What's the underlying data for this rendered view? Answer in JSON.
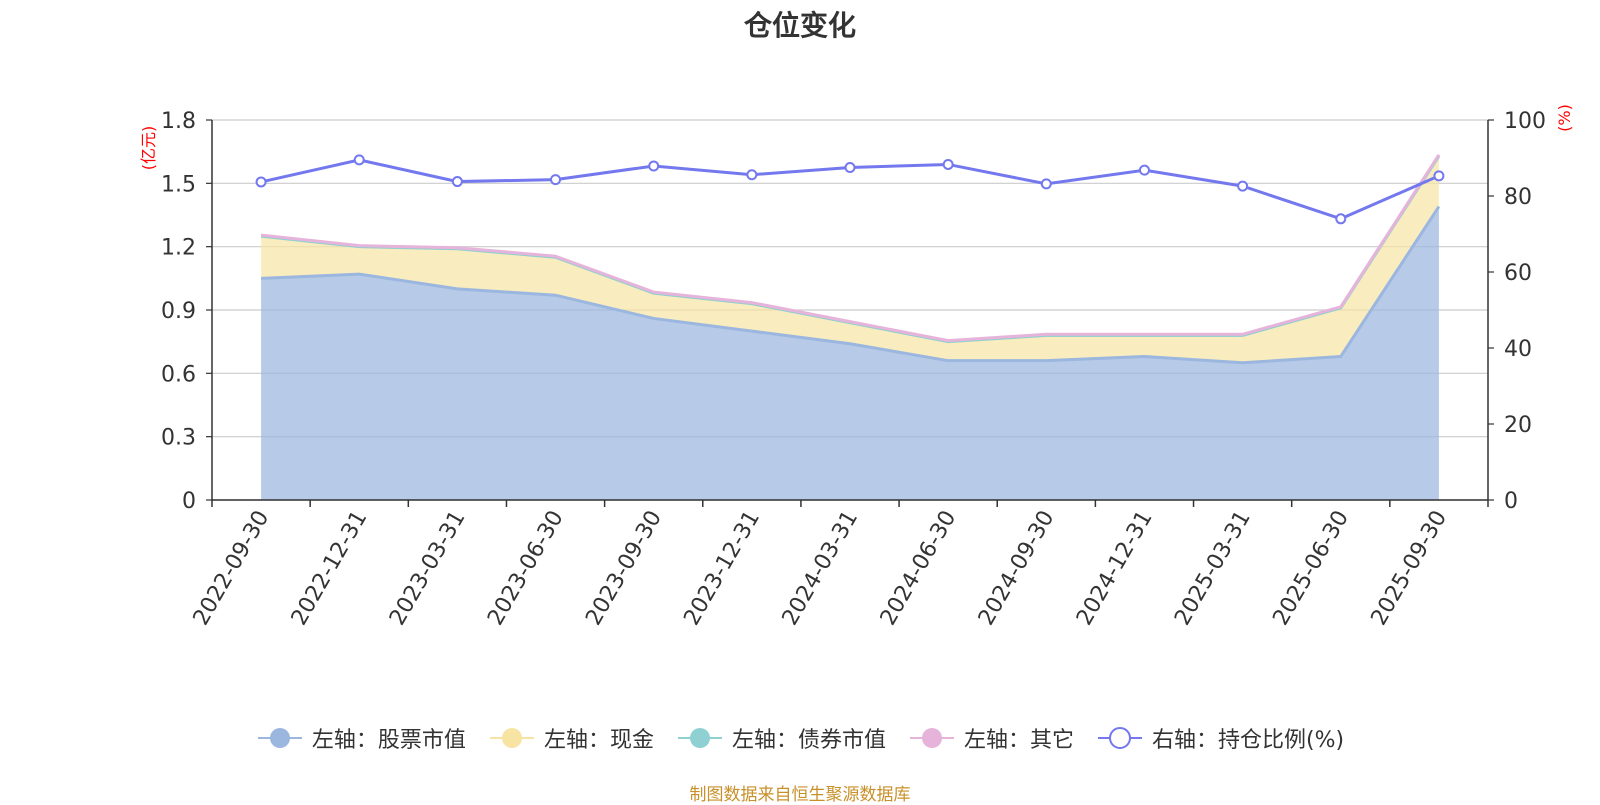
{
  "chart_data": {
    "type": "area",
    "title": "仓位变化",
    "left_axis": {
      "unit": "(亿元)",
      "range": [
        0,
        1.8
      ],
      "ticks": [
        "0",
        "0.3",
        "0.6",
        "0.9",
        "1.2",
        "1.5",
        "1.8"
      ]
    },
    "right_axis": {
      "unit": "(%)",
      "range": [
        0,
        100
      ],
      "ticks": [
        "0",
        "20",
        "40",
        "60",
        "80",
        "100"
      ]
    },
    "categories": [
      "2022-09-30",
      "2022-12-31",
      "2023-03-31",
      "2023-06-30",
      "2023-09-30",
      "2023-12-31",
      "2024-03-31",
      "2024-06-30",
      "2024-09-30",
      "2024-12-31",
      "2025-03-31",
      "2025-06-30",
      "2025-09-30"
    ],
    "series": [
      {
        "name": "左轴：股票市值",
        "axis": "left",
        "color": "#9bb6df",
        "values": [
          1.05,
          1.07,
          1.0,
          0.97,
          0.86,
          0.8,
          0.74,
          0.66,
          0.66,
          0.68,
          0.65,
          0.68,
          1.39
        ]
      },
      {
        "name": "左轴：现金",
        "axis": "left",
        "color": "#f7e4a2",
        "values": [
          0.2,
          0.13,
          0.19,
          0.18,
          0.12,
          0.13,
          0.1,
          0.09,
          0.12,
          0.1,
          0.13,
          0.23,
          0.24
        ]
      },
      {
        "name": "左轴：债券市值",
        "axis": "left",
        "color": "#8fd0d2",
        "values": [
          0,
          0,
          0,
          0,
          0,
          0,
          0,
          0,
          0,
          0,
          0,
          0,
          0
        ]
      },
      {
        "name": "左轴：其它",
        "axis": "left",
        "color": "#e6b4da",
        "values": [
          0.005,
          0.005,
          0.005,
          0.005,
          0.005,
          0.005,
          0.005,
          0.005,
          0.005,
          0.005,
          0.005,
          0.005,
          0.005
        ]
      },
      {
        "name": "右轴：持仓比例(%)",
        "axis": "right",
        "color": "#7378ee",
        "values": [
          83.7,
          89.5,
          83.8,
          84.3,
          87.9,
          85.6,
          87.5,
          88.3,
          83.2,
          86.8,
          82.6,
          74.0,
          85.3
        ]
      }
    ]
  },
  "source_text": "制图数据来自恒生聚源数据库"
}
